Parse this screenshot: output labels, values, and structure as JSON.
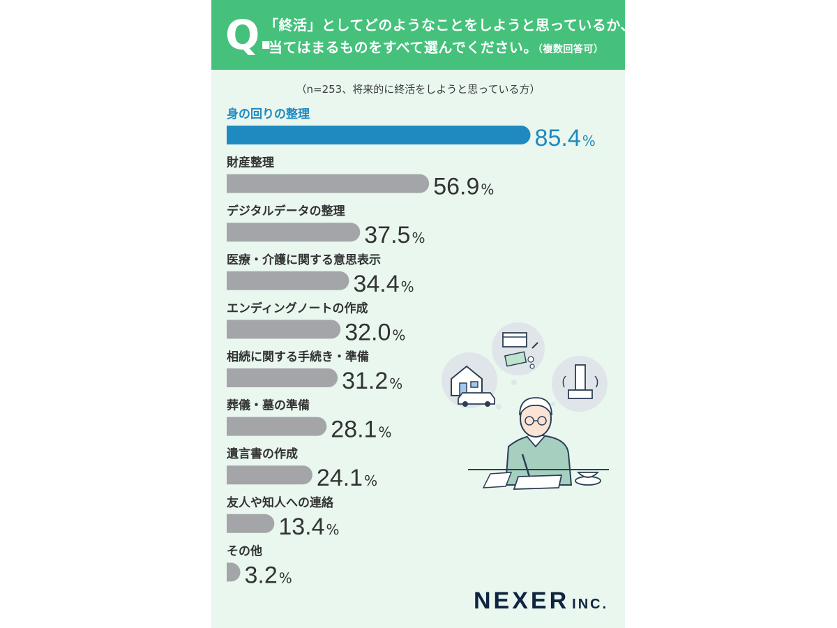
{
  "header": {
    "q_mark": "Q.",
    "question_line1": "「終活」としてどのようなことをしようと思っているか、",
    "question_line2": "当てはまるものをすべて選んでください。",
    "question_note": "（複数回答可）"
  },
  "subtitle": "（n=253、将来的に終活をしようと思っている方）",
  "colors": {
    "highlight": "#1f8ac0",
    "bar": "#a4a5a8",
    "header": "#45c17c",
    "background": "#e9f7ef"
  },
  "chart_data": {
    "type": "bar",
    "orientation": "horizontal",
    "unit": "%",
    "categories": [
      "身の回りの整理",
      "財産整理",
      "デジタルデータの整理",
      "医療・介護に関する意思表示",
      "エンディングノートの作成",
      "相続に関する手続き・準備",
      "葬儀・墓の準備",
      "遺言書の作成",
      "友人や知人への連絡",
      "その他"
    ],
    "values": [
      85.4,
      56.9,
      37.5,
      34.4,
      32.0,
      31.2,
      28.1,
      24.1,
      13.4,
      3.2
    ],
    "value_labels": [
      "85.4",
      "56.9",
      "37.5",
      "34.4",
      "32.0",
      "31.2",
      "28.1",
      "24.1",
      "13.4",
      "3.2"
    ],
    "highlighted_index": 0,
    "xlim": [
      0,
      100
    ]
  },
  "logo": {
    "main": "NEXER",
    "sub": "INC."
  }
}
